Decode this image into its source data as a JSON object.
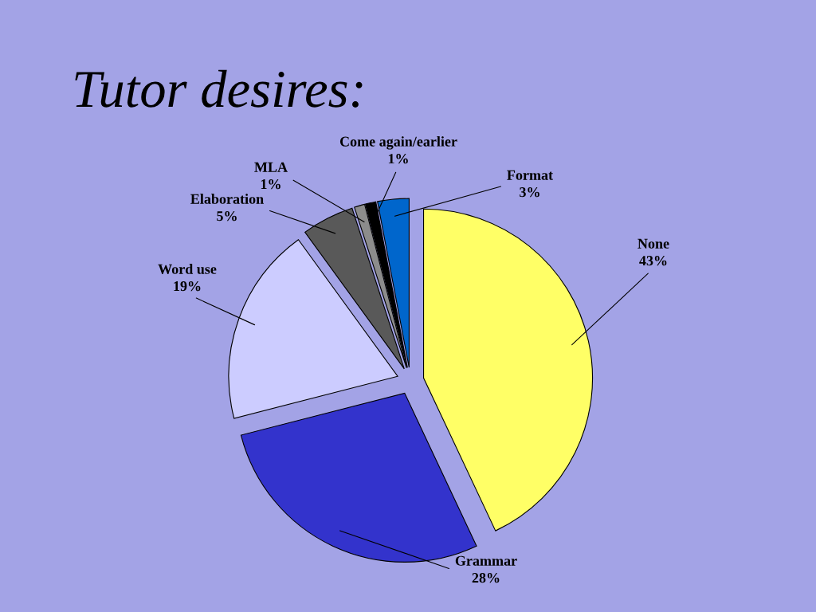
{
  "chart_data": {
    "type": "pie",
    "title": "Tutor desires:",
    "categories": [
      "None",
      "Grammar",
      "Word use",
      "Elaboration",
      "MLA",
      "Come again/earlier",
      "Format"
    ],
    "values": [
      43,
      28,
      19,
      5,
      1,
      1,
      3
    ],
    "value_labels": [
      "43%",
      "28%",
      "19%",
      "5%",
      "1%",
      "1%",
      "3%"
    ],
    "colors": [
      "#ffff66",
      "#3333cc",
      "#ccccff",
      "#595959",
      "#8c8c8c",
      "#000000",
      "#0066cc"
    ]
  }
}
